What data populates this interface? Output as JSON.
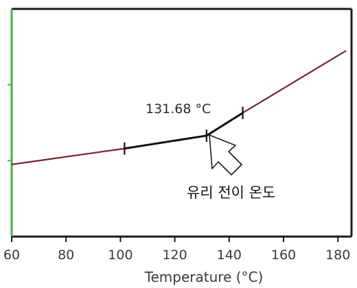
{
  "chart_data": {
    "type": "line",
    "title": "",
    "xlabel": "Temperature (°C)",
    "ylabel": "",
    "xlim": [
      60,
      185
    ],
    "ylim": [
      0,
      3
    ],
    "x_ticks": [
      "60",
      "80",
      "100",
      "120",
      "140",
      "160",
      "180"
    ],
    "x_tick_values": [
      60,
      80,
      100,
      120,
      140,
      160,
      180
    ],
    "y_tick_values": [
      1,
      2
    ],
    "grid": false,
    "series": [
      {
        "x": [
          60,
          101.5,
          131.68,
          145,
          183
        ],
        "y": [
          0.95,
          1.16,
          1.33,
          1.63,
          2.45
        ],
        "color": "#7a2230"
      }
    ],
    "highlight_segment": {
      "x": [
        101.5,
        131.68,
        145
      ],
      "y": [
        1.16,
        1.33,
        1.63
      ],
      "color": "#111111"
    },
    "markers_x": [
      101.5,
      131.68,
      145
    ],
    "annotations": {
      "value_label": "131.68 °C",
      "transition_label": "유리 전이 온도"
    },
    "colors": {
      "left_axis": "#3cb34a",
      "frame": "#1a1a1a",
      "curve": "#7a2230",
      "segment": "#111111"
    }
  }
}
